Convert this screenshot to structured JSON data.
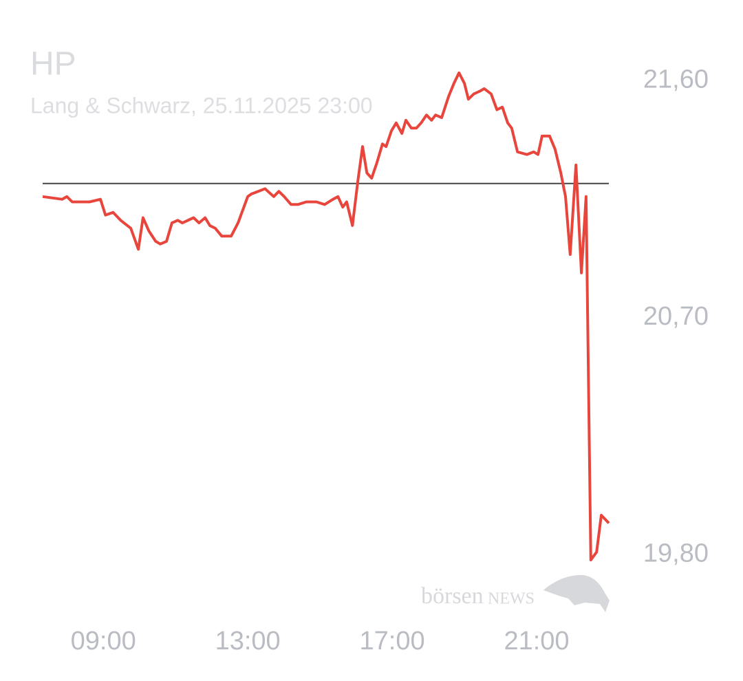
{
  "chart_data": {
    "type": "line",
    "title": "HP",
    "subtitle": "Lang & Schwarz, 25.11.2025 23:00",
    "watermark_left": "börsen",
    "watermark_right": "NEWS",
    "x": [
      7.32,
      7.86,
      7.99,
      8.14,
      8.33,
      8.62,
      8.92,
      9.06,
      9.27,
      9.48,
      9.76,
      9.97,
      10.1,
      10.26,
      10.45,
      10.58,
      10.75,
      10.9,
      11.06,
      11.19,
      11.5,
      11.65,
      11.82,
      11.95,
      12.1,
      12.28,
      12.54,
      12.73,
      13.0,
      13.1,
      13.29,
      13.48,
      13.72,
      13.86,
      14.01,
      14.2,
      14.39,
      14.62,
      14.9,
      15.13,
      15.36,
      15.5,
      15.63,
      15.74,
      15.9,
      16.05,
      16.18,
      16.3,
      16.43,
      16.58,
      16.73,
      16.83,
      16.98,
      17.11,
      17.27,
      17.38,
      17.53,
      17.67,
      17.8,
      17.95,
      18.09,
      18.2,
      18.37,
      18.56,
      18.71,
      18.85,
      19.0,
      19.11,
      19.26,
      19.42,
      19.55,
      19.74,
      19.9,
      20.05,
      20.2,
      20.31,
      20.47,
      20.73,
      20.92,
      21.04,
      21.15,
      21.36,
      21.51,
      21.67,
      21.8,
      21.93,
      22.09,
      22.24,
      22.37,
      22.5,
      22.66,
      22.79,
      23.0
    ],
    "values": [
      21.16,
      21.15,
      21.16,
      21.14,
      21.14,
      21.14,
      21.15,
      21.09,
      21.1,
      21.07,
      21.04,
      20.96,
      21.08,
      21.03,
      20.99,
      20.98,
      20.99,
      21.06,
      21.07,
      21.06,
      21.08,
      21.06,
      21.08,
      21.05,
      21.04,
      21.01,
      21.01,
      21.06,
      21.16,
      21.17,
      21.18,
      21.19,
      21.16,
      21.18,
      21.16,
      21.13,
      21.13,
      21.14,
      21.14,
      21.13,
      21.15,
      21.16,
      21.12,
      21.14,
      21.05,
      21.22,
      21.35,
      21.25,
      21.23,
      21.29,
      21.36,
      21.35,
      21.41,
      21.44,
      21.4,
      21.45,
      21.42,
      21.42,
      21.44,
      21.47,
      21.45,
      21.47,
      21.46,
      21.54,
      21.59,
      21.63,
      21.59,
      21.53,
      21.55,
      21.56,
      21.57,
      21.55,
      21.49,
      21.5,
      21.44,
      21.42,
      21.33,
      21.32,
      21.33,
      21.32,
      21.39,
      21.39,
      21.34,
      21.25,
      21.16,
      20.94,
      21.28,
      20.87,
      21.16,
      19.78,
      19.81,
      19.95,
      19.92
    ],
    "color": "#e8453c",
    "reference_line": 21.21,
    "reference_color": "#444444",
    "xlim": [
      7.32,
      23.0
    ],
    "ylim": [
      19.66,
      21.75
    ],
    "xticks": [
      {
        "value": 9,
        "label": "09:00"
      },
      {
        "value": 13,
        "label": "13:00"
      },
      {
        "value": 17,
        "label": "17:00"
      },
      {
        "value": 21,
        "label": "21:00"
      }
    ],
    "yticks": [
      {
        "value": 19.8,
        "label": "19,80"
      },
      {
        "value": 20.7,
        "label": "20,70"
      },
      {
        "value": 21.6,
        "label": "21,60"
      }
    ],
    "grid": false
  }
}
